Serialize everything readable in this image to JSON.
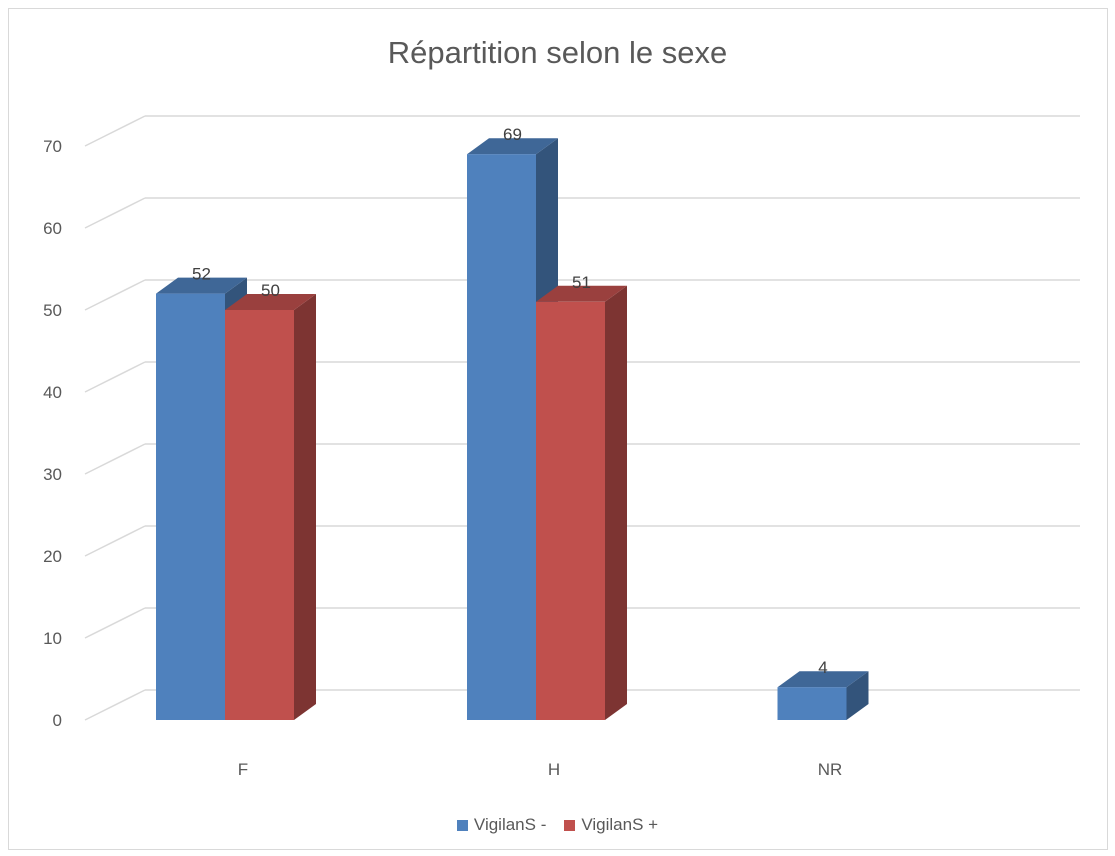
{
  "chart_data": {
    "type": "bar",
    "title": "Répartition selon le sexe",
    "categories": [
      "F",
      "H",
      "NR"
    ],
    "series": [
      {
        "name": "VigilanS -",
        "values": [
          52,
          69,
          4
        ],
        "color": "#4f81bd"
      },
      {
        "name": "VigilanS +",
        "values": [
          50,
          51,
          null
        ],
        "color": "#c0504d"
      }
    ],
    "ylim": [
      0,
      70
    ],
    "yticks": [
      0,
      10,
      20,
      30,
      40,
      50,
      60,
      70
    ],
    "grid": true,
    "legend": "bottom",
    "style": "3d-column"
  }
}
